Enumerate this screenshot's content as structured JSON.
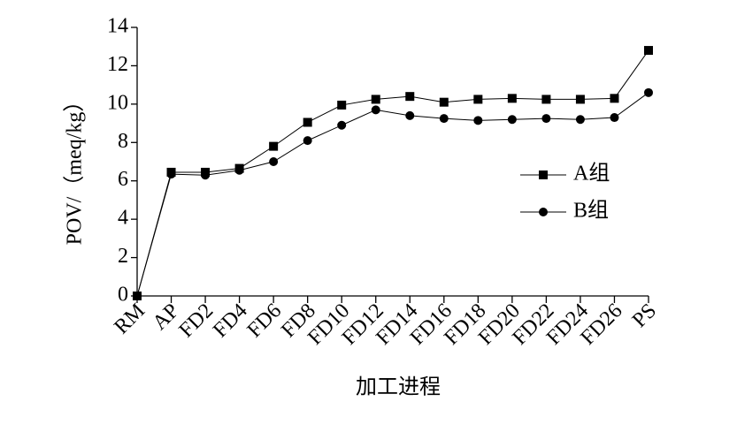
{
  "chart_data": {
    "type": "line",
    "x_label": "加工进程",
    "y_label": "POV/（meq/kg）",
    "categories": [
      "RM",
      "AP",
      "FD2",
      "FD4",
      "FD6",
      "FD8",
      "FD10",
      "FD12",
      "FD14",
      "FD16",
      "FD18",
      "FD20",
      "FD22",
      "FD24",
      "FD26",
      "PS"
    ],
    "series": [
      {
        "name": "A组",
        "color": "#000000",
        "marker": "square",
        "values": [
          0,
          6.45,
          6.45,
          6.65,
          7.8,
          9.05,
          9.95,
          10.25,
          10.4,
          10.1,
          10.25,
          10.3,
          10.25,
          10.25,
          10.3,
          12.8
        ]
      },
      {
        "name": "B组",
        "color": "#000000",
        "marker": "circle",
        "values": [
          0,
          6.35,
          6.3,
          6.55,
          7.0,
          8.1,
          8.9,
          9.7,
          9.4,
          9.25,
          9.15,
          9.2,
          9.25,
          9.2,
          9.3,
          10.6
        ]
      }
    ],
    "ylim": [
      0,
      14
    ],
    "yticks": [
      0,
      2,
      4,
      6,
      8,
      10,
      12,
      14
    ],
    "legend": "right"
  }
}
